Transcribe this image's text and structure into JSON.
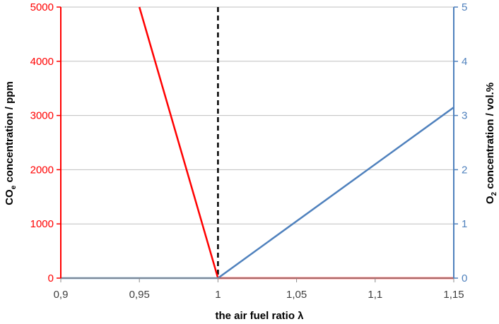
{
  "chart_data": {
    "type": "line",
    "xlabel": "the air fuel ratio λ",
    "ylabel_left": {
      "main": "CO",
      "sub": "e",
      "rest": " concentration / ppm"
    },
    "ylabel_right": {
      "main": "O",
      "sub": "2",
      "rest": " concentration / vol.%"
    },
    "xlim": [
      0.9,
      1.15
    ],
    "ylim_left": [
      0,
      5000
    ],
    "ylim_right": [
      0,
      5
    ],
    "x_ticks": [
      0.9,
      0.95,
      1.0,
      1.05,
      1.1,
      1.15
    ],
    "x_tick_labels": [
      "0,9",
      "0,95",
      "1",
      "1,05",
      "1,1",
      "1,15"
    ],
    "y_left_ticks": [
      0,
      1000,
      2000,
      3000,
      4000,
      5000
    ],
    "y_left_tick_labels": [
      "0",
      "1000",
      "2000",
      "3000",
      "4000",
      "5000"
    ],
    "y_right_ticks": [
      0,
      1,
      2,
      3,
      4,
      5
    ],
    "y_right_tick_labels": [
      "0",
      "1",
      "2",
      "3",
      "4",
      "5"
    ],
    "grid": true,
    "colors": {
      "left_axis": "#ff0000",
      "right_axis": "#4f81bd",
      "grid": "#bfbfbf",
      "reference": "#000000"
    },
    "series": [
      {
        "axis": "left",
        "color": "#ff0000",
        "x": [
          0.95,
          1.0,
          1.15
        ],
        "y": [
          5000,
          0,
          0
        ]
      },
      {
        "axis": "right",
        "color": "#4f81bd",
        "x": [
          0.9,
          1.0,
          1.15
        ],
        "y": [
          0,
          0,
          3.15
        ]
      }
    ],
    "reference_line": {
      "x": 1.0,
      "style": "dashed",
      "color": "#000000"
    }
  }
}
